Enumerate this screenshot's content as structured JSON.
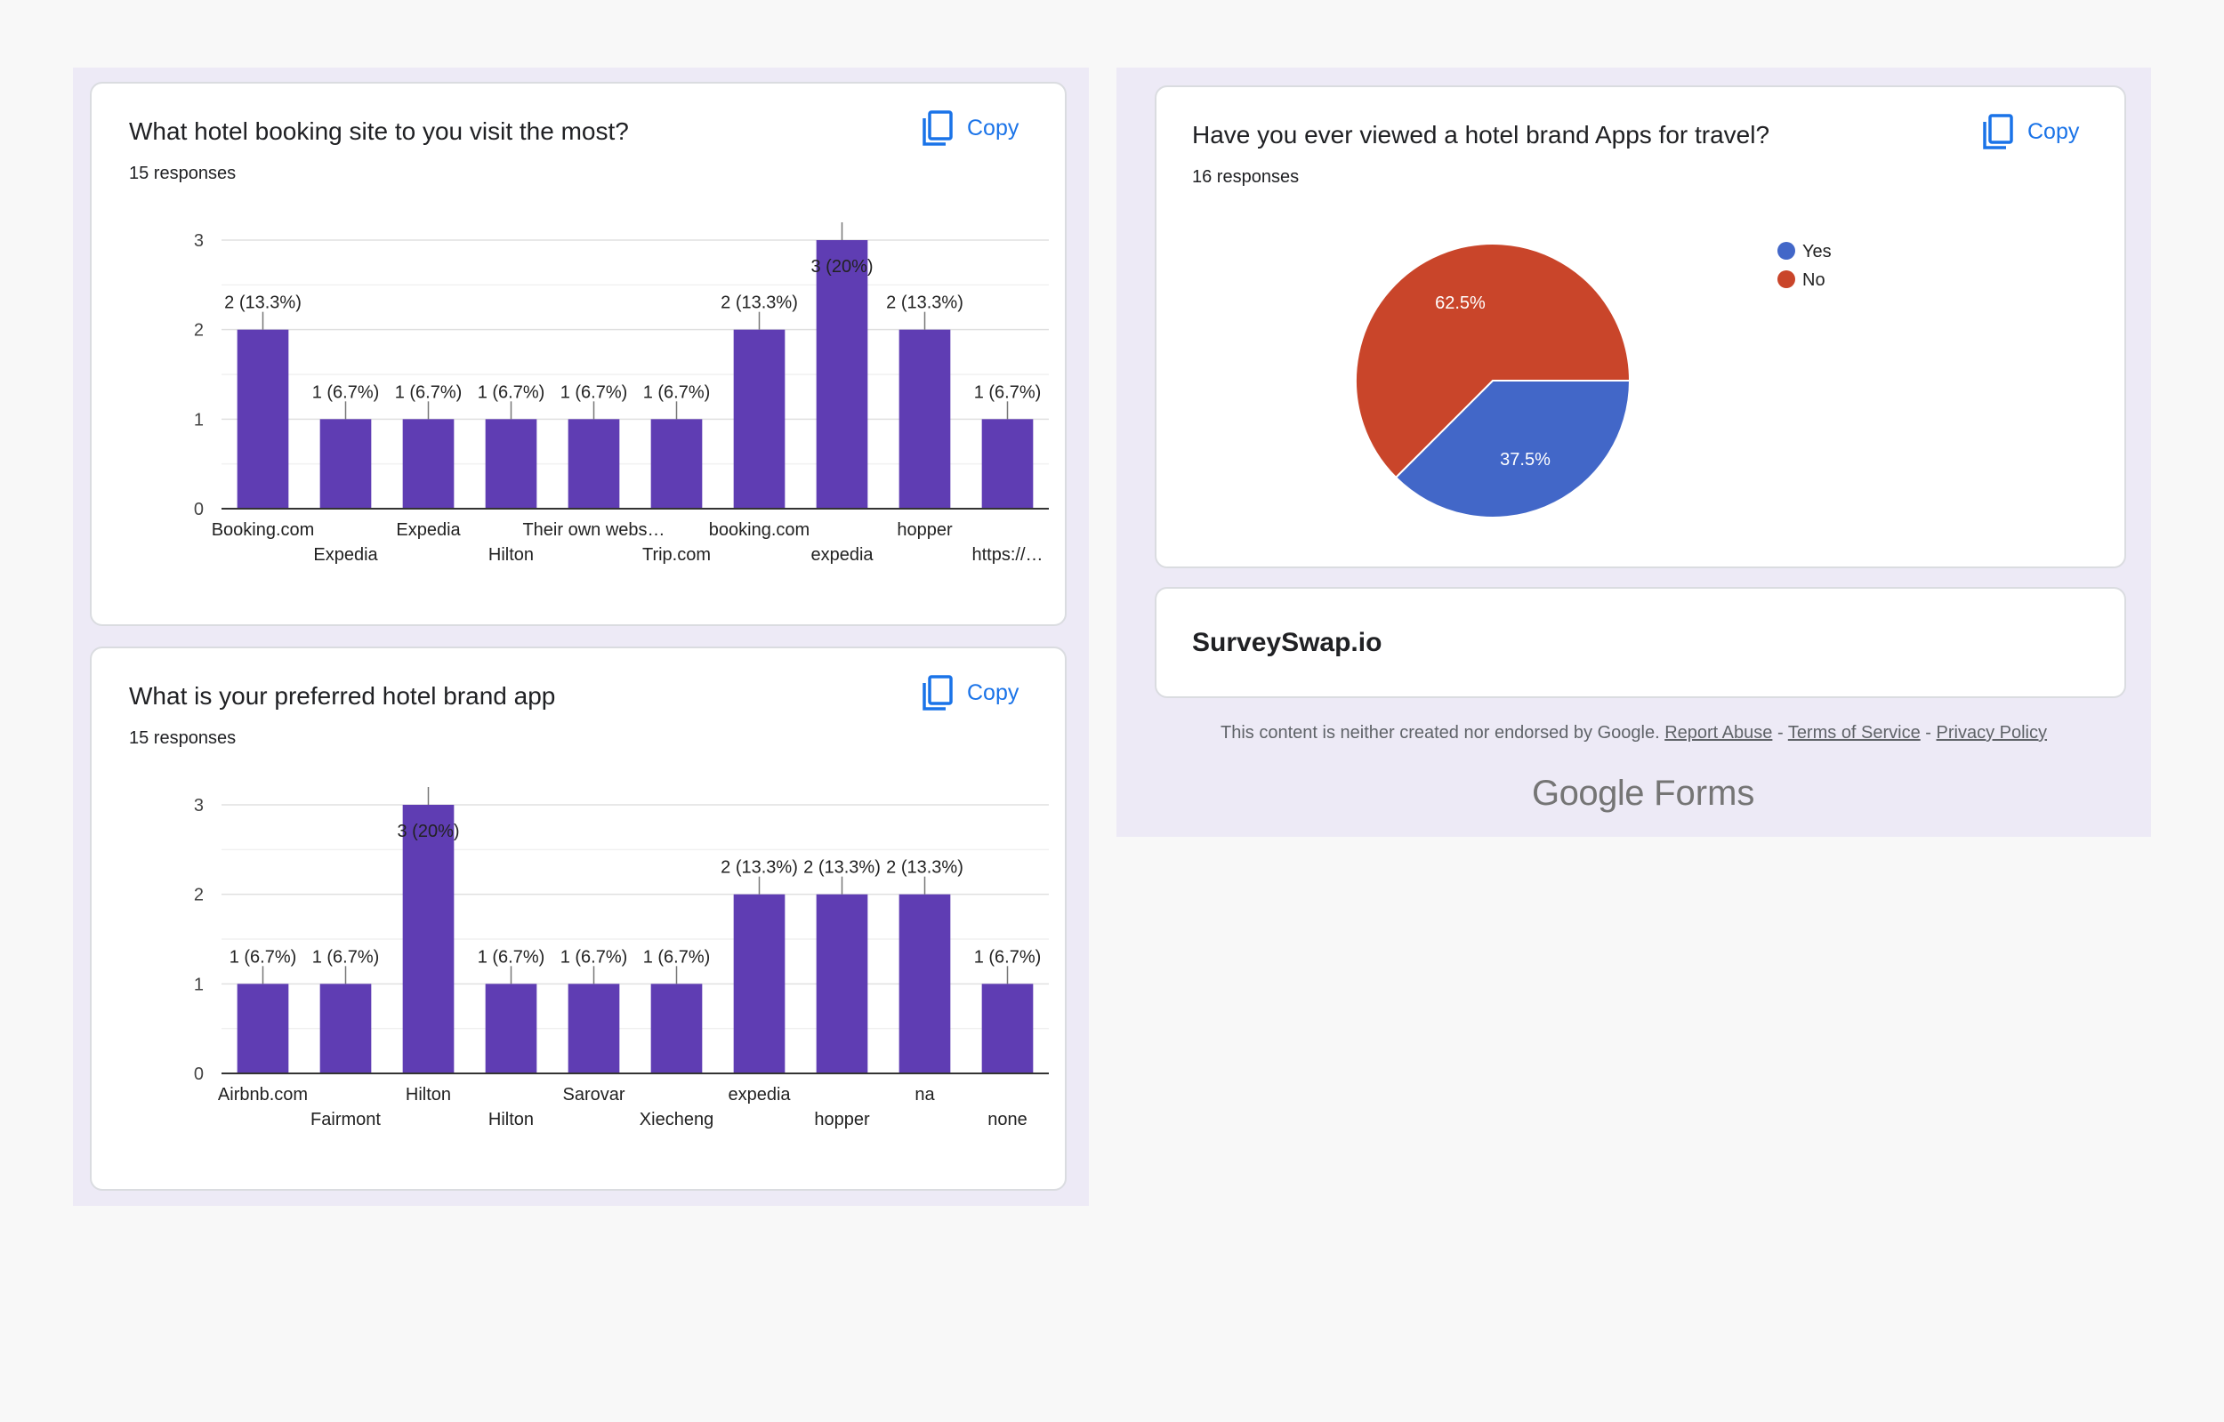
{
  "cards": [
    {
      "title": "What hotel booking site to you visit the most?",
      "responses": "15 responses",
      "copy_label": "Copy"
    },
    {
      "title": "What is your preferred hotel brand app",
      "responses": "15 responses",
      "copy_label": "Copy"
    },
    {
      "title": "Have you ever viewed a hotel brand Apps for travel?",
      "responses": "16 responses",
      "copy_label": "Copy"
    }
  ],
  "surveyswap": "SurveySwap.io",
  "footer": {
    "disclaimer": "This content is neither created nor endorsed by Google.",
    "report_abuse": "Report Abuse",
    "sep1": " - ",
    "terms": "Terms of Service",
    "sep2": " - ",
    "privacy": "Privacy Policy",
    "brand_google": "Google",
    "brand_forms": "Forms"
  },
  "colors": {
    "bar": "#5f3db3",
    "pie_yes": "#4267c8",
    "pie_no": "#c9452a",
    "copy": "#1a73e8"
  },
  "chart_data": [
    {
      "type": "bar",
      "categories": [
        "Booking.com",
        "Expedia",
        "Expedia",
        "Hilton",
        "Their own webs…",
        "Trip.com",
        "booking.com",
        "expedia",
        "hopper",
        "https://…"
      ],
      "values": [
        2,
        1,
        1,
        1,
        1,
        1,
        2,
        3,
        2,
        1
      ],
      "data_labels": [
        "2 (13.3%)",
        "1 (6.7%)",
        "1 (6.7%)",
        "1 (6.7%)",
        "1 (6.7%)",
        "1 (6.7%)",
        "2 (13.3%)",
        "3 (20%)",
        "2 (13.3%)",
        "1 (6.7%)"
      ],
      "ylim": [
        0,
        3
      ],
      "yticks": [
        "0",
        "1",
        "2",
        "3"
      ],
      "grid": true
    },
    {
      "type": "bar",
      "categories": [
        "Airbnb.com",
        "Fairmont",
        "Hilton",
        "Hilton",
        "Sarovar",
        "Xiecheng",
        "expedia",
        "hopper",
        "na",
        "none"
      ],
      "values": [
        1,
        1,
        3,
        1,
        1,
        1,
        2,
        2,
        2,
        1
      ],
      "data_labels": [
        "1 (6.7%)",
        "1 (6.7%)",
        "3 (20%)",
        "1 (6.7%)",
        "1 (6.7%)",
        "1 (6.7%)",
        "2 (13.3%)",
        "2 (13.3%)",
        "2 (13.3%)",
        "1 (6.7%)"
      ],
      "ylim": [
        0,
        3
      ],
      "yticks": [
        "0",
        "1",
        "2",
        "3"
      ],
      "grid": true
    },
    {
      "type": "pie",
      "categories": [
        "Yes",
        "No"
      ],
      "values": [
        37.5,
        62.5
      ],
      "data_labels": [
        "37.5%",
        "62.5%"
      ],
      "legend": "right"
    }
  ]
}
